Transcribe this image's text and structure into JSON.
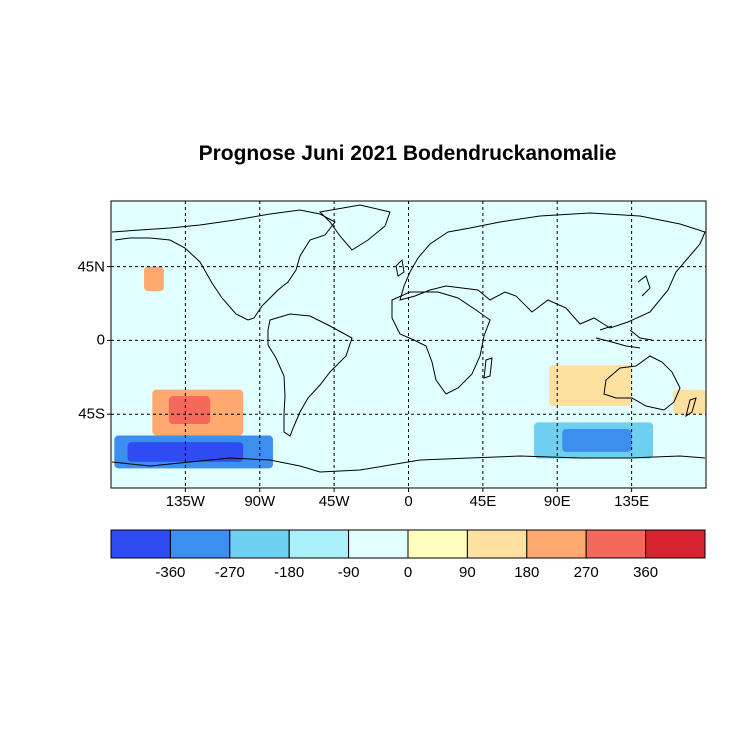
{
  "title": "Prognose Juni 2021 Bodendruckanomalie",
  "map": {
    "projection": "equirectangular",
    "lon_range": [
      -180,
      180
    ],
    "lat_range": [
      -90,
      85
    ],
    "grid": true,
    "lat_ticks": [
      {
        "value": 45,
        "label": "45N"
      },
      {
        "value": 0,
        "label": "0"
      },
      {
        "value": -45,
        "label": "45S"
      }
    ],
    "lon_ticks": [
      {
        "value": -135,
        "label": "135W"
      },
      {
        "value": -90,
        "label": "90W"
      },
      {
        "value": -45,
        "label": "45W"
      },
      {
        "value": 0,
        "label": "0"
      },
      {
        "value": 45,
        "label": "45E"
      },
      {
        "value": 90,
        "label": "90E"
      },
      {
        "value": 135,
        "label": "135E"
      }
    ],
    "anomaly_regions": [
      {
        "level": 360,
        "lon": [
          -145,
          -120
        ],
        "lat": [
          -51,
          -34
        ]
      },
      {
        "level": 270,
        "lon": [
          -155,
          -100
        ],
        "lat": [
          -58,
          -30
        ]
      },
      {
        "level": 270,
        "lon": [
          -160,
          -148
        ],
        "lat": [
          30,
          45
        ]
      },
      {
        "level": -360,
        "lon": [
          -170,
          -100
        ],
        "lat": [
          -74,
          -62
        ]
      },
      {
        "level": -270,
        "lon": [
          -178,
          -82
        ],
        "lat": [
          -78,
          -58
        ]
      },
      {
        "level": -270,
        "lon": [
          93,
          135
        ],
        "lat": [
          -68,
          -54
        ]
      },
      {
        "level": -180,
        "lon": [
          76,
          148
        ],
        "lat": [
          -72,
          -50
        ]
      },
      {
        "level": 180,
        "lon": [
          85,
          135
        ],
        "lat": [
          -40,
          -15
        ]
      },
      {
        "level": 180,
        "lon": [
          160,
          180
        ],
        "lat": [
          -45,
          -30
        ]
      }
    ]
  },
  "colorbar": {
    "colors": [
      "#2e4cf2",
      "#3d8fef",
      "#6fcff0",
      "#a9f0fa",
      "#e1ffff",
      "#feffbe",
      "#fee1a1",
      "#fda970",
      "#f4695b",
      "#d6232f"
    ],
    "boundaries": [
      -450,
      -360,
      -270,
      -180,
      -90,
      0,
      90,
      180,
      270,
      360,
      450
    ],
    "tick_labels": [
      "-360",
      "-270",
      "-180",
      "-90",
      "0",
      "90",
      "180",
      "270",
      "360"
    ]
  }
}
